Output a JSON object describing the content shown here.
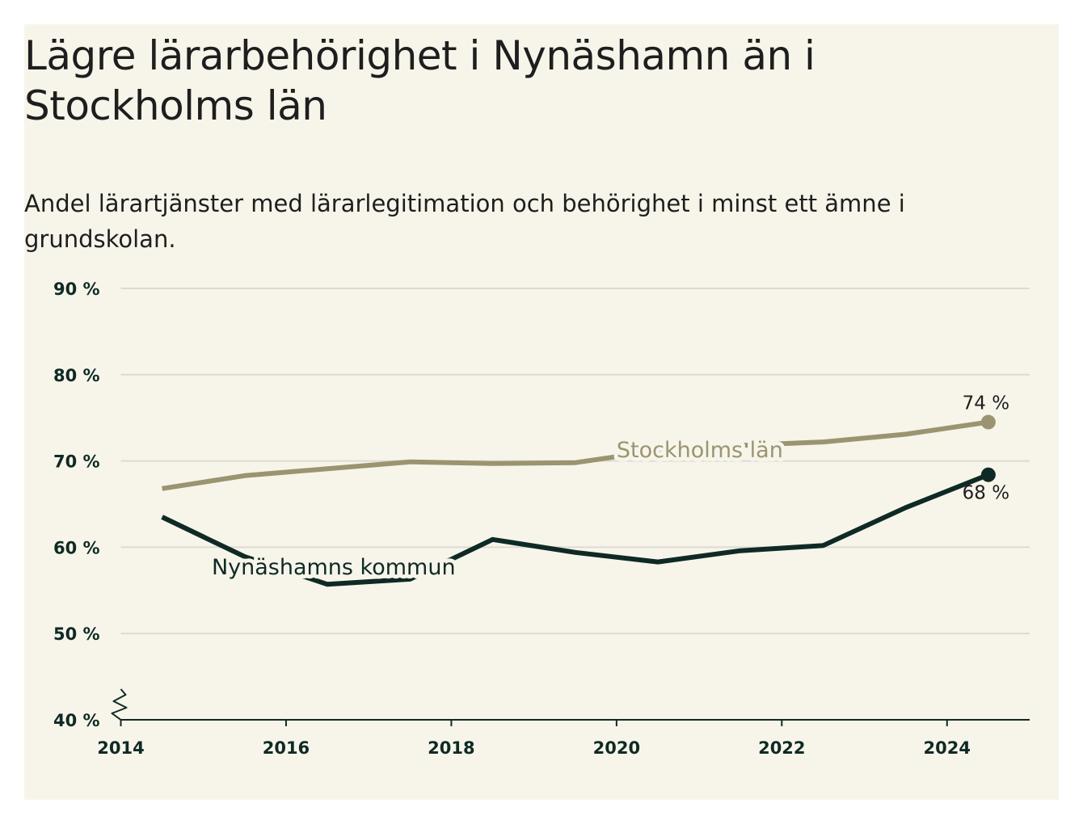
{
  "chart_data": {
    "type": "line",
    "title": "Lägre lärarbehörighet i Nynäshamn än i Stockholms län",
    "subtitle": "Andel lärartjänster med lärarlegitimation och behörighet i minst ett ämne i grundskolan.",
    "xlabel": "",
    "ylabel": "",
    "x": [
      2014.5,
      2015.5,
      2016.5,
      2017.5,
      2018.5,
      2019.5,
      2020.5,
      2021.5,
      2022.5,
      2023.5,
      2024.5
    ],
    "x_ticks": [
      "2014",
      "2016",
      "2018",
      "2020",
      "2022",
      "2024"
    ],
    "y_ticks": [
      "40 %",
      "50 %",
      "60 %",
      "70 %",
      "80 %",
      "90 %"
    ],
    "xlim": [
      2014,
      2025
    ],
    "ylim": [
      40,
      90
    ],
    "grid": true,
    "legend": "inline labels",
    "series": [
      {
        "name": "Stockholms län",
        "color": "#9a9470",
        "values": [
          66.8,
          68.3,
          69.1,
          69.9,
          69.7,
          69.8,
          71.2,
          71.8,
          72.2,
          73.1,
          74.5
        ],
        "end_label": "74 %"
      },
      {
        "name": "Nynäshamns kommun",
        "color": "#0f2a25",
        "values": [
          63.5,
          58.9,
          55.7,
          56.3,
          60.9,
          59.4,
          58.3,
          59.6,
          60.2,
          64.6,
          68.4
        ],
        "end_label": "68 %"
      }
    ]
  }
}
